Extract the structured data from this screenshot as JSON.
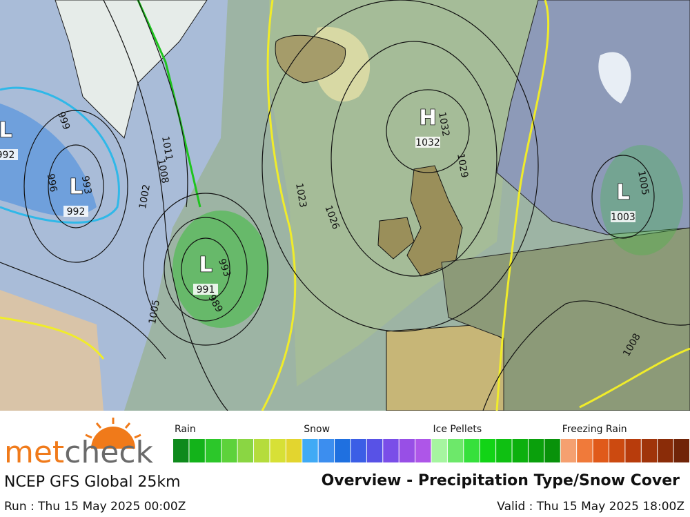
{
  "map": {
    "pressure_centers": [
      {
        "letter": "L",
        "value": 992
      },
      {
        "letter": "L",
        "value": 992
      },
      {
        "letter": "L",
        "value": 991
      },
      {
        "letter": "H",
        "value": 1032
      },
      {
        "letter": "L",
        "value": 1003
      }
    ],
    "isobar_labels": [
      999,
      996,
      993,
      1011,
      1008,
      1002,
      1005,
      993,
      989,
      1023,
      1026,
      1029,
      1032,
      1005,
      1008
    ]
  },
  "legend": [
    {
      "name": "Rain",
      "colors": [
        "#0e8a1c",
        "#13b31a",
        "#2cc72a",
        "#5dd23b",
        "#8ad643",
        "#b5dc3c",
        "#d7e036",
        "#e3d52f"
      ]
    },
    {
      "name": "Snow",
      "colors": [
        "#40aaf5",
        "#3c8eef",
        "#1f70e0",
        "#3b5ee6",
        "#5852e6",
        "#7a4ee8",
        "#984fe6",
        "#ae56e8"
      ]
    },
    {
      "name": "Ice Pellets",
      "colors": [
        "#a6f5a0",
        "#6de86a",
        "#36e03c",
        "#12d416",
        "#0fc012",
        "#0cb00e",
        "#0aa00c",
        "#08920a"
      ]
    },
    {
      "name": "Freezing Rain",
      "colors": [
        "#f5a070",
        "#f07a3a",
        "#e05a1a",
        "#cc4a10",
        "#b83c0c",
        "#a0340a",
        "#8a2c08",
        "#702408"
      ]
    }
  ],
  "footer": {
    "brand_prefix": "met",
    "brand_suffix": "check",
    "model": "NCEP GFS Global 25km",
    "title": "Overview - Precipitation Type/Snow Cover",
    "run": "Run : Thu 15 May 2025 00:00Z",
    "valid": "Valid : Thu 15 May 2025 18:00Z"
  }
}
